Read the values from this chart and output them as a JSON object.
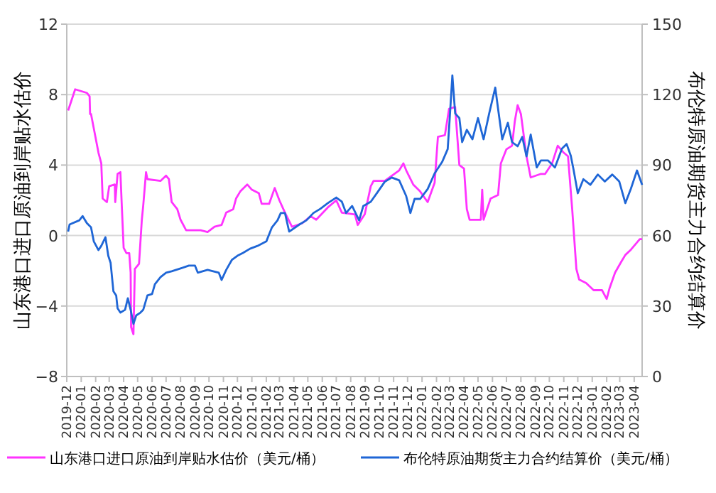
{
  "chart_data": {
    "type": "line",
    "ylabel": "山东港口进口原油到岸贴水估价",
    "y2label": "布伦特原油期货主力合约结算价",
    "xlim": [
      "2019-12-01",
      "2023-04-18"
    ],
    "xticks": [
      "2019-12",
      "2020-01",
      "2020-02",
      "2020-03",
      "2020-04",
      "2020-05",
      "2020-06",
      "2020-07",
      "2020-08",
      "2020-09",
      "2020-10",
      "2020-11",
      "2020-12",
      "2021-01",
      "2021-02",
      "2021-03",
      "2021-04",
      "2021-05",
      "2021-06",
      "2021-07",
      "2021-08",
      "2021-09",
      "2021-10",
      "2021-11",
      "2021-12",
      "2022-01",
      "2022-02",
      "2022-03",
      "2022-04",
      "2022-05",
      "2022-06",
      "2022-07",
      "2022-08",
      "2022-09",
      "2022-10",
      "2022-11",
      "2022-12",
      "2023-01",
      "2023-02",
      "2023-03",
      "2023-04"
    ],
    "ylim": [
      -8,
      12
    ],
    "yticks": [
      -8,
      -4,
      0,
      4,
      8,
      12
    ],
    "y2lim": [
      0,
      150
    ],
    "y2ticks": [
      0,
      30,
      60,
      90,
      120,
      150
    ],
    "grid": "y",
    "legend": "bottom",
    "marker": "none",
    "line_style": "solid",
    "series": [
      {
        "name": "山东港口进口原油到岸贴水估价（美元/桶）",
        "color": "#ff33ff",
        "axis": "y",
        "x": [
          "2019-12-04",
          "2019-12-19",
          "2020-01-13",
          "2020-01-19",
          "2020-01-20",
          "2020-01-22",
          "2020-02-07",
          "2020-02-13",
          "2020-02-16",
          "2020-02-25",
          "2020-03-01",
          "2020-03-13",
          "2020-03-14",
          "2020-03-19",
          "2020-03-25",
          "2020-03-28",
          "2020-04-01",
          "2020-04-07",
          "2020-04-13",
          "2020-04-16",
          "2020-04-17",
          "2020-04-22",
          "2020-04-25",
          "2020-05-04",
          "2020-05-10",
          "2020-05-13",
          "2020-05-19",
          "2020-05-22",
          "2020-06-19",
          "2020-07-01",
          "2020-07-07",
          "2020-07-13",
          "2020-07-25",
          "2020-08-01",
          "2020-08-13",
          "2020-09-13",
          "2020-09-28",
          "2020-10-13",
          "2020-10-28",
          "2020-11-07",
          "2020-11-22",
          "2020-11-28",
          "2020-12-07",
          "2020-12-22",
          "2021-01-01",
          "2021-01-16",
          "2021-01-22",
          "2021-02-07",
          "2021-02-19",
          "2021-03-01",
          "2021-03-13",
          "2021-03-28",
          "2021-04-19",
          "2021-05-07",
          "2021-05-19",
          "2021-06-13",
          "2021-07-01",
          "2021-07-13",
          "2021-08-10",
          "2021-08-16",
          "2021-08-31",
          "2021-09-13",
          "2021-09-19",
          "2021-10-13",
          "2021-11-13",
          "2021-11-22",
          "2021-11-28",
          "2021-12-13",
          "2021-12-28",
          "2022-01-13",
          "2022-01-28",
          "2022-02-04",
          "2022-02-19",
          "2022-02-28",
          "2022-03-13",
          "2022-03-22",
          "2022-04-01",
          "2022-04-07",
          "2022-04-13",
          "2022-05-07",
          "2022-05-10",
          "2022-05-13",
          "2022-05-28",
          "2022-06-13",
          "2022-06-19",
          "2022-07-01",
          "2022-07-13",
          "2022-07-19",
          "2022-07-25",
          "2022-08-01",
          "2022-08-07",
          "2022-08-13",
          "2022-08-22",
          "2022-09-13",
          "2022-09-22",
          "2022-10-07",
          "2022-10-19",
          "2022-11-01",
          "2022-11-10",
          "2022-11-19",
          "2022-11-28",
          "2022-12-04",
          "2022-12-19",
          "2023-01-04",
          "2023-01-22",
          "2023-02-01",
          "2023-02-07",
          "2023-02-19",
          "2023-03-04",
          "2023-03-13",
          "2023-03-25",
          "2023-04-13",
          "2023-04-18"
        ],
        "values": [
          7.1,
          8.3,
          8.1,
          7.9,
          6.9,
          6.9,
          4.7,
          4.1,
          2.1,
          1.9,
          2.8,
          2.9,
          1.9,
          3.5,
          3.6,
          1.7,
          -0.7,
          -1.0,
          -1.0,
          -2.1,
          -5.2,
          -5.6,
          -1.9,
          -1.6,
          0.9,
          1.7,
          3.6,
          3.2,
          3.1,
          3.4,
          3.2,
          1.9,
          1.5,
          0.9,
          0.3,
          0.3,
          0.2,
          0.5,
          0.6,
          1.3,
          1.5,
          2.1,
          2.5,
          2.9,
          2.6,
          2.4,
          1.8,
          1.8,
          2.7,
          2.0,
          1.3,
          0.5,
          0.7,
          1.1,
          0.9,
          1.6,
          2.0,
          1.3,
          1.2,
          0.6,
          1.2,
          2.8,
          3.1,
          3.1,
          3.7,
          4.1,
          3.7,
          2.9,
          2.5,
          1.9,
          3.0,
          5.6,
          5.7,
          7.2,
          7.3,
          4.0,
          3.8,
          1.5,
          0.9,
          0.9,
          2.6,
          0.9,
          2.1,
          2.3,
          4.1,
          4.9,
          5.1,
          6.5,
          7.4,
          6.9,
          5.7,
          4.5,
          3.3,
          3.5,
          3.5,
          4.1,
          5.1,
          4.7,
          4.5,
          1.5,
          -1.9,
          -2.5,
          -2.7,
          -3.1,
          -3.1,
          -3.6,
          -3.0,
          -2.1,
          -1.5,
          -1.1,
          -0.8,
          -0.2,
          -0.2
        ]
      },
      {
        "name": "布伦特原油期货主力合约结算价（美元/桶）",
        "color": "#1f66d6",
        "axis": "y2",
        "x": [
          "2019-12-04",
          "2019-12-07",
          "2019-12-28",
          "2020-01-04",
          "2020-01-13",
          "2020-01-22",
          "2020-01-28",
          "2020-02-07",
          "2020-02-13",
          "2020-02-22",
          "2020-02-28",
          "2020-03-04",
          "2020-03-10",
          "2020-03-16",
          "2020-03-19",
          "2020-03-25",
          "2020-04-04",
          "2020-04-10",
          "2020-04-16",
          "2020-04-22",
          "2020-04-28",
          "2020-05-07",
          "2020-05-13",
          "2020-05-22",
          "2020-06-01",
          "2020-06-07",
          "2020-06-19",
          "2020-07-01",
          "2020-07-13",
          "2020-08-01",
          "2020-08-19",
          "2020-09-01",
          "2020-09-07",
          "2020-09-28",
          "2020-10-22",
          "2020-10-28",
          "2020-11-07",
          "2020-11-19",
          "2020-12-01",
          "2020-12-13",
          "2020-12-28",
          "2021-01-13",
          "2021-02-01",
          "2021-02-13",
          "2021-02-25",
          "2021-03-04",
          "2021-03-13",
          "2021-03-22",
          "2021-04-13",
          "2021-04-28",
          "2021-05-13",
          "2021-05-28",
          "2021-06-13",
          "2021-07-01",
          "2021-07-13",
          "2021-07-22",
          "2021-08-04",
          "2021-08-19",
          "2021-08-28",
          "2021-09-13",
          "2021-09-28",
          "2021-10-13",
          "2021-10-28",
          "2021-11-13",
          "2021-11-28",
          "2021-12-07",
          "2021-12-16",
          "2021-12-28",
          "2022-01-13",
          "2022-01-28",
          "2022-02-13",
          "2022-02-25",
          "2022-03-01",
          "2022-03-07",
          "2022-03-13",
          "2022-03-22",
          "2022-03-28",
          "2022-04-07",
          "2022-04-19",
          "2022-05-01",
          "2022-05-13",
          "2022-05-25",
          "2022-06-07",
          "2022-06-13",
          "2022-06-22",
          "2022-07-04",
          "2022-07-13",
          "2022-07-25",
          "2022-08-04",
          "2022-08-13",
          "2022-08-22",
          "2022-09-04",
          "2022-09-13",
          "2022-09-28",
          "2022-10-13",
          "2022-10-28",
          "2022-11-07",
          "2022-11-16",
          "2022-11-22",
          "2022-12-01",
          "2022-12-13",
          "2022-12-28",
          "2023-01-13",
          "2023-01-28",
          "2023-02-13",
          "2023-02-28",
          "2023-03-13",
          "2023-03-25",
          "2023-04-07",
          "2023-04-18"
        ],
        "values": [
          61.7,
          64.7,
          66.5,
          68.3,
          65.3,
          63.5,
          57.5,
          53.8,
          55.6,
          59.3,
          51.4,
          48.4,
          36.3,
          34.5,
          29.0,
          27.2,
          28.4,
          33.3,
          28.4,
          22.4,
          26.0,
          27.2,
          28.4,
          34.5,
          35.1,
          39.3,
          42.3,
          44.2,
          44.8,
          46.0,
          47.2,
          47.2,
          44.2,
          45.4,
          44.2,
          41.1,
          45.4,
          49.6,
          51.4,
          52.6,
          54.4,
          55.6,
          57.5,
          63.5,
          66.5,
          69.6,
          69.6,
          61.7,
          64.7,
          66.5,
          69.6,
          71.4,
          73.8,
          76.2,
          74.4,
          69.6,
          72.6,
          66.5,
          72.6,
          74.4,
          78.6,
          82.9,
          84.7,
          83.5,
          76.8,
          69.6,
          75.6,
          75.6,
          79.8,
          86.5,
          91.3,
          96.8,
          108.9,
          128.2,
          112.0,
          110.0,
          99.8,
          105.0,
          101.0,
          110.0,
          101.0,
          112.0,
          123.0,
          114.0,
          101.0,
          108.0,
          99.8,
          98.0,
          102.0,
          93.7,
          103.0,
          89.0,
          92.0,
          92.0,
          89.0,
          97.0,
          99.0,
          94.0,
          88.0,
          78.0,
          84.0,
          81.6,
          86.0,
          83.0,
          86.0,
          83.0,
          73.8,
          80.0,
          87.7,
          81.6
        ]
      }
    ]
  }
}
